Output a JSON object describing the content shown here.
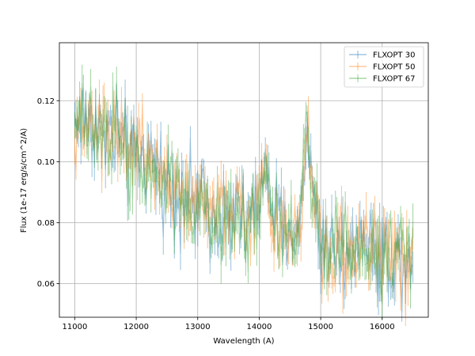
{
  "chart_data": {
    "type": "line",
    "title": "",
    "xlabel": "Wavelength (A)",
    "ylabel": "Flux (1e-17 erg/s/cm^2/A)",
    "xlim": [
      10750,
      16750
    ],
    "ylim": [
      0.049,
      0.139
    ],
    "x_ticks": [
      11000,
      12000,
      13000,
      14000,
      15000,
      16000
    ],
    "x_tick_labels": [
      "11000",
      "12000",
      "13000",
      "14000",
      "15000",
      "16000"
    ],
    "y_ticks": [
      0.06,
      0.08,
      0.1,
      0.12
    ],
    "y_tick_labels": [
      "0.06",
      "0.08",
      "0.10",
      "0.12"
    ],
    "grid": true,
    "legend_position": "top-right",
    "error_bars": true,
    "x_range": [
      11000,
      16500
    ],
    "sample_step": 20,
    "series": [
      {
        "name": "FLXOPT 30",
        "color": "#1f77b4",
        "anchors_x": [
          11000,
          11200,
          11500,
          11700,
          12000,
          12300,
          12600,
          12900,
          13200,
          13500,
          13800,
          14000,
          14080,
          14150,
          14300,
          14500,
          14650,
          14720,
          14770,
          14800,
          14850,
          14950,
          15100,
          15500,
          15700,
          16000,
          16200,
          16500
        ],
        "anchors_y": [
          0.113,
          0.115,
          0.109,
          0.107,
          0.101,
          0.097,
          0.093,
          0.087,
          0.085,
          0.083,
          0.08,
          0.087,
          0.101,
          0.089,
          0.08,
          0.076,
          0.076,
          0.098,
          0.111,
          0.107,
          0.093,
          0.08,
          0.072,
          0.073,
          0.075,
          0.069,
          0.068,
          0.069
        ],
        "noise": 0.0075,
        "error": 0.0045
      },
      {
        "name": "FLXOPT 50",
        "color": "#ff7f0e",
        "anchors_x": [
          11000,
          11200,
          11500,
          11700,
          12000,
          12300,
          12600,
          12900,
          13200,
          13500,
          13800,
          14000,
          14080,
          14150,
          14300,
          14500,
          14650,
          14720,
          14770,
          14800,
          14850,
          14950,
          15100,
          15500,
          15700,
          16000,
          16200,
          16500
        ],
        "anchors_y": [
          0.111,
          0.112,
          0.11,
          0.108,
          0.1,
          0.098,
          0.092,
          0.088,
          0.086,
          0.084,
          0.082,
          0.086,
          0.098,
          0.088,
          0.079,
          0.075,
          0.075,
          0.097,
          0.11,
          0.106,
          0.092,
          0.079,
          0.071,
          0.073,
          0.074,
          0.07,
          0.069,
          0.07
        ],
        "noise": 0.007,
        "error": 0.0045
      },
      {
        "name": "FLXOPT 67",
        "color": "#2ca02c",
        "anchors_x": [
          11000,
          11200,
          11500,
          11700,
          12000,
          12300,
          12600,
          12900,
          13200,
          13500,
          13800,
          14000,
          14080,
          14150,
          14300,
          14500,
          14650,
          14720,
          14770,
          14800,
          14850,
          14950,
          15100,
          15500,
          15700,
          16000,
          16200,
          16500
        ],
        "anchors_y": [
          0.112,
          0.114,
          0.108,
          0.108,
          0.099,
          0.096,
          0.094,
          0.086,
          0.084,
          0.082,
          0.08,
          0.086,
          0.1,
          0.087,
          0.078,
          0.076,
          0.077,
          0.099,
          0.111,
          0.106,
          0.091,
          0.078,
          0.07,
          0.072,
          0.073,
          0.068,
          0.068,
          0.068
        ],
        "noise": 0.007,
        "error": 0.0045
      }
    ]
  }
}
